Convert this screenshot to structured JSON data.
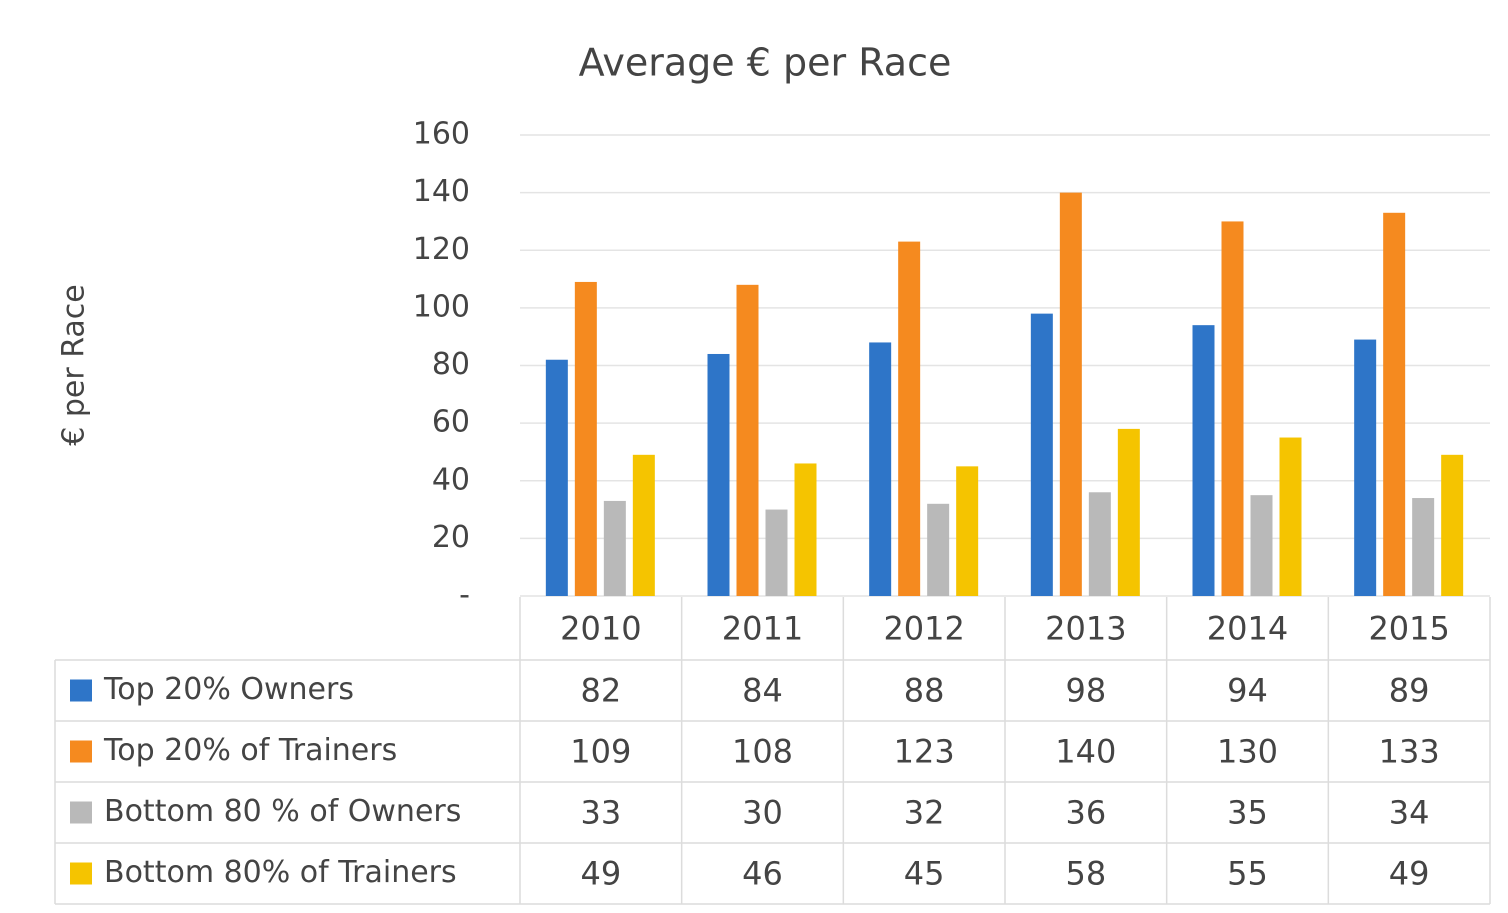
{
  "chart_data": {
    "type": "bar",
    "title": "Average € per Race",
    "y_label": "€ per Race",
    "categories": [
      "2010",
      "2011",
      "2012",
      "2013",
      "2014",
      "2015"
    ],
    "series": [
      {
        "name": "Top 20% Owners",
        "color": "#2e75c8",
        "values": [
          82,
          84,
          88,
          98,
          94,
          89
        ]
      },
      {
        "name": "Top 20% of Trainers",
        "color": "#f58a1f",
        "values": [
          109,
          108,
          123,
          140,
          130,
          133
        ]
      },
      {
        "name": "Bottom 80 % of Owners",
        "color": "#b9b9b9",
        "values": [
          33,
          30,
          32,
          36,
          35,
          34
        ]
      },
      {
        "name": "Bottom 80% of Trainers",
        "color": "#f5c400",
        "values": [
          49,
          46,
          45,
          58,
          55,
          49
        ]
      }
    ],
    "ylim": [
      0,
      160
    ],
    "yticks": [
      {
        "value": 0,
        "label": "-"
      },
      20,
      40,
      60,
      80,
      100,
      120,
      140,
      160
    ],
    "grid": true
  }
}
